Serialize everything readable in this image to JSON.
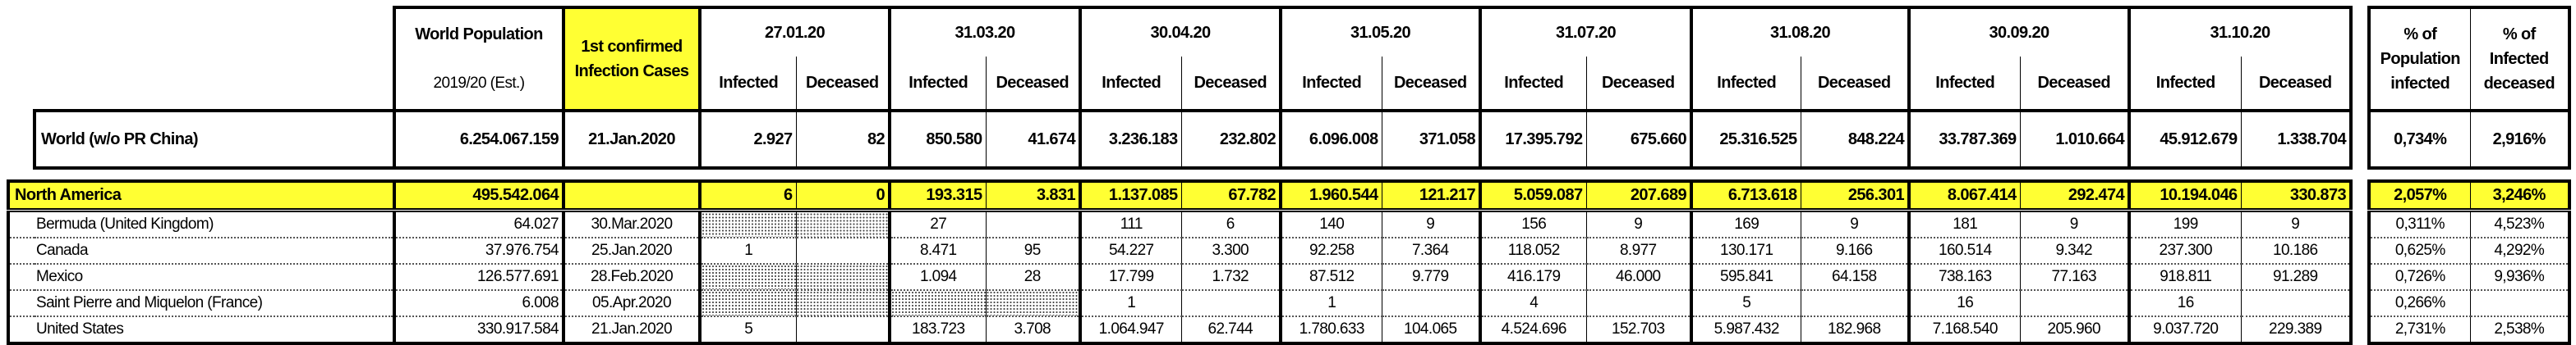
{
  "header": {
    "population_title": "World Population",
    "population_sub": "2019/20 (Est.)",
    "first_case_title": "1st confirmed Infection Cases",
    "dates": [
      "27.01.20",
      "31.03.20",
      "30.04.20",
      "31.05.20",
      "31.07.20",
      "31.08.20",
      "30.09.20",
      "31.10.20"
    ],
    "infected_label": "Infected",
    "deceased_label": "Deceased",
    "pct_population_title": "% of Population infected",
    "pct_deceased_title": "% of Infected deceased"
  },
  "world": {
    "label": "World (w/o PR China)",
    "population": "6.254.067.159",
    "first_case": "21.Jan.2020",
    "values": [
      "2.927",
      "82",
      "850.580",
      "41.674",
      "3.236.183",
      "232.802",
      "6.096.008",
      "371.058",
      "17.395.792",
      "675.660",
      "25.316.525",
      "848.224",
      "33.787.369",
      "1.010.664",
      "45.912.679",
      "1.338.704"
    ],
    "pct_population": "0,734%",
    "pct_deceased": "2,916%"
  },
  "region": {
    "label": "North America",
    "population": "495.542.064",
    "first_case": "",
    "values": [
      "6",
      "0",
      "193.315",
      "3.831",
      "1.137.085",
      "67.782",
      "1.960.544",
      "121.217",
      "5.059.087",
      "207.689",
      "6.713.618",
      "256.301",
      "8.067.414",
      "292.474",
      "10.194.046",
      "330.873"
    ],
    "pct_population": "2,057%",
    "pct_deceased": "3,246%"
  },
  "countries": [
    {
      "label": "Bermuda (United Kingdom)",
      "population": "64.027",
      "first_case": "30.Mar.2020",
      "values": [
        "",
        "",
        "27",
        "",
        "111",
        "6",
        "140",
        "9",
        "156",
        "9",
        "169",
        "9",
        "181",
        "9",
        "199",
        "9"
      ],
      "pct_population": "0,311%",
      "pct_deceased": "4,523%"
    },
    {
      "label": "Canada",
      "population": "37.976.754",
      "first_case": "25.Jan.2020",
      "values": [
        "1",
        "",
        "8.471",
        "95",
        "54.227",
        "3.300",
        "92.258",
        "7.364",
        "118.052",
        "8.977",
        "130.171",
        "9.166",
        "160.514",
        "9.342",
        "237.300",
        "10.186"
      ],
      "pct_population": "0,625%",
      "pct_deceased": "4,292%"
    },
    {
      "label": "Mexico",
      "population": "126.577.691",
      "first_case": "28.Feb.2020",
      "values": [
        "",
        "",
        "1.094",
        "28",
        "17.799",
        "1.732",
        "87.512",
        "9.779",
        "416.179",
        "46.000",
        "595.841",
        "64.158",
        "738.163",
        "77.163",
        "918.811",
        "91.289"
      ],
      "pct_population": "0,726%",
      "pct_deceased": "9,936%"
    },
    {
      "label": "Saint Pierre and Miquelon (France)",
      "population": "6.008",
      "first_case": "05.Apr.2020",
      "values": [
        "",
        "",
        "",
        "",
        "1",
        "",
        "1",
        "",
        "4",
        "",
        "5",
        "",
        "16",
        "",
        "16",
        ""
      ],
      "pct_population": "0,266%",
      "pct_deceased": ""
    },
    {
      "label": "United States",
      "population": "330.917.584",
      "first_case": "21.Jan.2020",
      "values": [
        "5",
        "",
        "183.723",
        "3.708",
        "1.064.947",
        "62.744",
        "1.780.633",
        "104.065",
        "4.524.696",
        "152.703",
        "5.987.432",
        "182.968",
        "7.168.540",
        "205.960",
        "9.037.720",
        "229.389"
      ],
      "pct_population": "2,731%",
      "pct_deceased": "2,538%"
    }
  ]
}
